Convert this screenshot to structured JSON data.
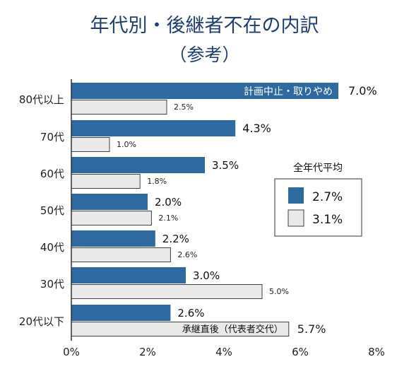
{
  "colors": {
    "series_a": "#2e69a1",
    "series_b": "#e9e9e9",
    "series_b_border": "#404040",
    "title": "#1f3f73",
    "axis": "#333333",
    "legend_border": "#777777"
  },
  "legend": {
    "title": "全年代平均",
    "items": [
      {
        "value": "2.7%",
        "color": "#2e69a1"
      },
      {
        "value": "3.1%",
        "color": "#e9e9e9"
      }
    ]
  },
  "chart_data": {
    "type": "bar",
    "orientation": "horizontal",
    "title": "年代別・後継者不在の内訳",
    "subtitle": "（参考）",
    "categories": [
      "80代以上",
      "70代",
      "60代",
      "50代",
      "40代",
      "30代",
      "20代以下"
    ],
    "series": [
      {
        "values": [
          7.0,
          4.3,
          3.5,
          2.0,
          2.2,
          3.0,
          2.6
        ],
        "labels": [
          "7.0%",
          "4.3%",
          "3.5%",
          "2.0%",
          "2.2%",
          "3.0%",
          "2.6%"
        ]
      },
      {
        "values": [
          2.5,
          1.0,
          1.8,
          2.1,
          2.6,
          5.0,
          5.7
        ],
        "labels": [
          "2.5%",
          "1.0%",
          "1.8%",
          "2.1%",
          "2.6%",
          "5.0%",
          "5.7%"
        ]
      }
    ],
    "x_ticks": [
      "0%",
      "2%",
      "4%",
      "6%",
      "8%"
    ],
    "xlim": [
      0,
      8
    ],
    "grid": false,
    "legend_position": "right",
    "annotations": [
      "計画中止・取りやめ",
      "承継直後（代表者交代）"
    ]
  }
}
